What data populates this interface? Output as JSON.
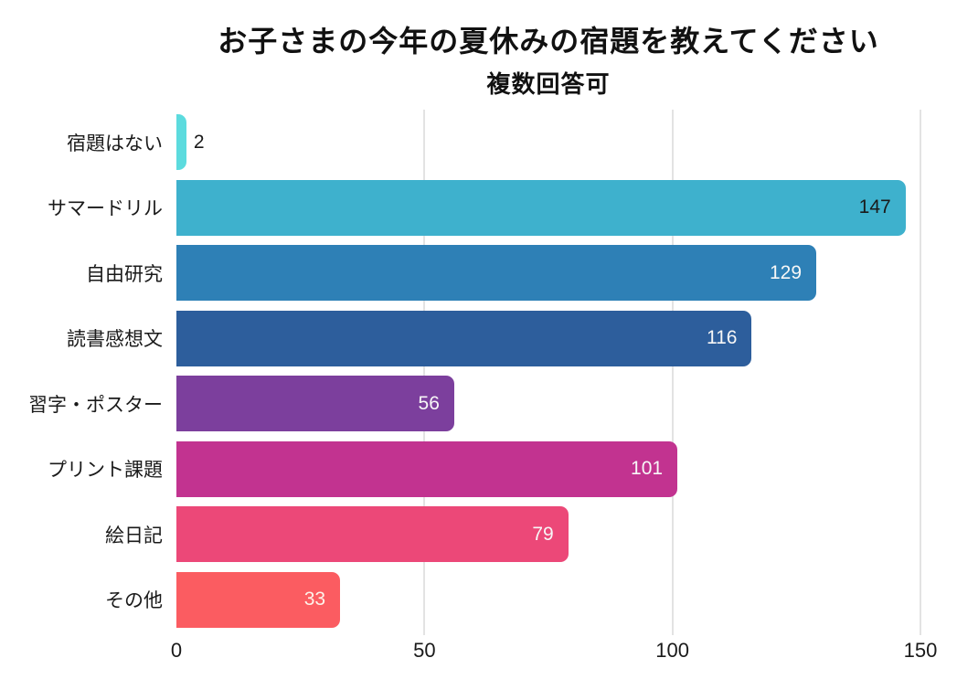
{
  "chart_data": {
    "type": "bar",
    "orientation": "horizontal",
    "title": "お子さまの今年の夏休みの宿題を教えてください",
    "subtitle": "複数回答可",
    "categories": [
      "宿題はない",
      "サマードリル",
      "自由研究",
      "読書感想文",
      "習字・ポスター",
      "プリント課題",
      "絵日記",
      "その他"
    ],
    "values": [
      2,
      147,
      129,
      116,
      56,
      101,
      79,
      33
    ],
    "bar_colors": [
      "#5CDBDE",
      "#3EB1CD",
      "#2E80B6",
      "#2D5E9C",
      "#7C3F9D",
      "#C23390",
      "#EC4878",
      "#FB5C61"
    ],
    "value_label_styles": [
      {
        "position": "outside",
        "color": "#1a1a1a"
      },
      {
        "position": "inside",
        "color": "#1a1a1a"
      },
      {
        "position": "inside",
        "color": "#f7f7f7"
      },
      {
        "position": "inside",
        "color": "#f7f7f7"
      },
      {
        "position": "inside",
        "color": "#f7f7f7"
      },
      {
        "position": "inside",
        "color": "#f7f7f7"
      },
      {
        "position": "inside",
        "color": "#f7f7f7"
      },
      {
        "position": "inside",
        "color": "#fdf3ea"
      }
    ],
    "xlabel": "",
    "ylabel": "",
    "xlim": [
      0,
      150
    ],
    "xticks": [
      0,
      50,
      100,
      150
    ],
    "gridlines": [
      50,
      100,
      150
    ],
    "grid_color": "#E3E3E3",
    "background_color": "#ffffff",
    "text_color": "#1a1a1a",
    "legend": "none",
    "grid": "vertical-only"
  }
}
